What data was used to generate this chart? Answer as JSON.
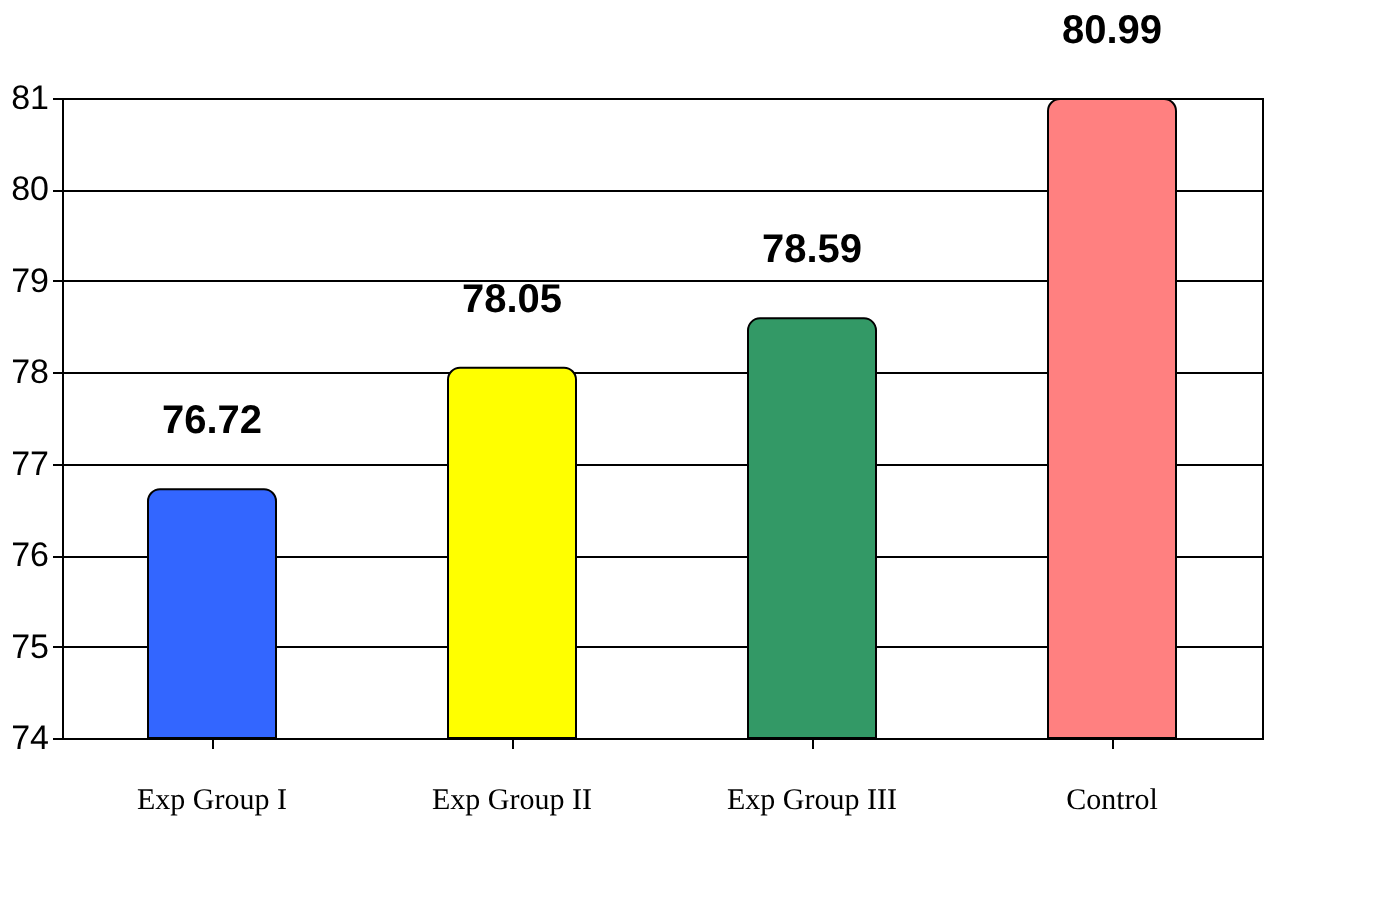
{
  "chart_data": {
    "type": "bar",
    "categories": [
      "Exp Group I",
      "Exp Group II",
      "Exp Group III",
      "Control"
    ],
    "values": [
      76.72,
      78.05,
      78.59,
      80.99
    ],
    "colors": [
      "#3366ff",
      "#ffff00",
      "#339966",
      "#ff8080"
    ],
    "ylim": [
      74,
      81
    ],
    "yticks": [
      74,
      75,
      76,
      77,
      78,
      79,
      80,
      81
    ],
    "grid": "y",
    "data_labels": true
  }
}
